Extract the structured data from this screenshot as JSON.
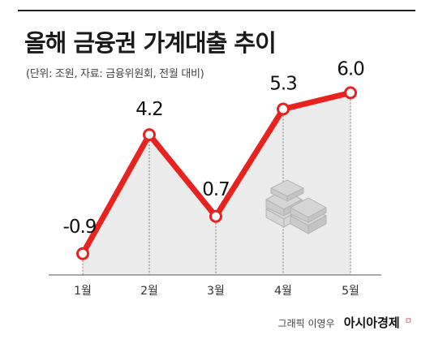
{
  "title": "올해 금융권 가계대출 추이",
  "subtitle": "(단위: 조원, 자료: 금융위원회, 전월 대비)",
  "credit": {
    "graphic": "그래픽 이영우",
    "brand": "아시아경제",
    "mark": "ㅁ"
  },
  "colors": {
    "line": "#e8231f",
    "area": "#ececec",
    "dot_fill": "#ffffff",
    "guide": "#777777"
  },
  "icon": "money-stack-icon",
  "chart_data": {
    "type": "line",
    "title": "올해 금융권 가계대출 추이",
    "subtitle": "(단위: 조원, 자료: 금융위원회, 전월 대비)",
    "categories": [
      "1월",
      "2월",
      "3월",
      "4월",
      "5월"
    ],
    "values": [
      -0.9,
      4.2,
      0.7,
      5.3,
      6.0
    ],
    "value_labels": [
      "-0.9",
      "4.2",
      "0.7",
      "5.3",
      "6.0"
    ],
    "ylim": [
      -1.5,
      6.5
    ],
    "grid": false,
    "legend": "none",
    "area_fill": true
  }
}
